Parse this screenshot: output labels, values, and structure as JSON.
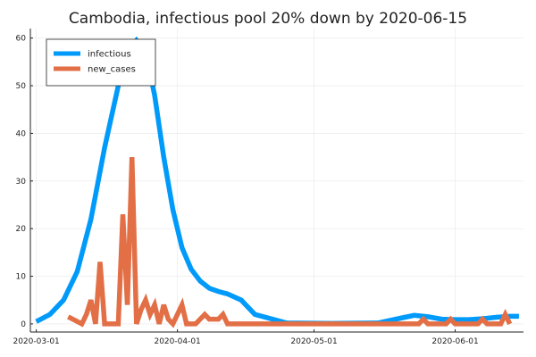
{
  "chart_data": {
    "type": "line",
    "title": "Cambodia, infectious pool 20% down by 2020-06-15",
    "xlabel": "",
    "ylabel": "",
    "x_start": "2020-03-01",
    "x_range": [
      "2020-03-01",
      "2020-06-15"
    ],
    "ylim": [
      0,
      62
    ],
    "grid": true,
    "legend_position": "top-left",
    "x_ticks": [
      {
        "date": "2020-03-01",
        "label": "2020-03-01"
      },
      {
        "date": "2020-04-01",
        "label": "2020-04-01"
      },
      {
        "date": "2020-05-01",
        "label": "2020-05-01"
      },
      {
        "date": "2020-06-01",
        "label": "2020-06-01"
      }
    ],
    "y_ticks": [
      0,
      10,
      20,
      30,
      40,
      50,
      60
    ],
    "series": [
      {
        "name": "infectious",
        "color": "#009AFA",
        "dates": [
          "2020-03-01",
          "2020-03-04",
          "2020-03-07",
          "2020-03-10",
          "2020-03-13",
          "2020-03-16",
          "2020-03-19",
          "2020-03-21",
          "2020-03-23",
          "2020-03-25",
          "2020-03-27",
          "2020-03-29",
          "2020-03-31",
          "2020-04-02",
          "2020-04-04",
          "2020-04-06",
          "2020-04-08",
          "2020-04-10",
          "2020-04-12",
          "2020-04-15",
          "2020-04-18",
          "2020-04-25",
          "2020-05-05",
          "2020-05-15",
          "2020-05-20",
          "2020-05-23",
          "2020-05-26",
          "2020-05-29",
          "2020-06-01",
          "2020-06-04",
          "2020-06-07",
          "2020-06-10",
          "2020-06-13",
          "2020-06-15"
        ],
        "values": [
          0.5,
          2,
          5,
          11,
          22,
          37,
          50,
          57,
          59.5,
          57,
          48,
          35,
          24,
          16,
          11.5,
          9,
          7.5,
          6.8,
          6.3,
          5,
          2,
          0.2,
          0.1,
          0.2,
          1.2,
          1.8,
          1.5,
          1.0,
          0.9,
          0.9,
          1.1,
          1.4,
          1.6,
          1.6
        ]
      },
      {
        "name": "new_cases",
        "color": "#E26F46",
        "dates": [
          "2020-03-08",
          "2020-03-11",
          "2020-03-12",
          "2020-03-13",
          "2020-03-14",
          "2020-03-15",
          "2020-03-16",
          "2020-03-17",
          "2020-03-18",
          "2020-03-19",
          "2020-03-20",
          "2020-03-21",
          "2020-03-22",
          "2020-03-23",
          "2020-03-24",
          "2020-03-25",
          "2020-03-26",
          "2020-03-27",
          "2020-03-28",
          "2020-03-29",
          "2020-03-30",
          "2020-03-31",
          "2020-04-01",
          "2020-04-02",
          "2020-04-03",
          "2020-04-04",
          "2020-04-05",
          "2020-04-06",
          "2020-04-07",
          "2020-04-08",
          "2020-04-09",
          "2020-04-10",
          "2020-04-11",
          "2020-04-12",
          "2020-04-13",
          "2020-04-14",
          "2020-04-15",
          "2020-04-16",
          "2020-04-17",
          "2020-04-20",
          "2020-04-25",
          "2020-05-01",
          "2020-05-05",
          "2020-05-10",
          "2020-05-15",
          "2020-05-20",
          "2020-05-21",
          "2020-05-22",
          "2020-05-23",
          "2020-05-24",
          "2020-05-25",
          "2020-05-26",
          "2020-05-27",
          "2020-05-28",
          "2020-05-29",
          "2020-05-30",
          "2020-05-31",
          "2020-06-01",
          "2020-06-02",
          "2020-06-03",
          "2020-06-04",
          "2020-06-05",
          "2020-06-06",
          "2020-06-07",
          "2020-06-08",
          "2020-06-09",
          "2020-06-10",
          "2020-06-11",
          "2020-06-12",
          "2020-06-13"
        ],
        "values": [
          1.5,
          0,
          2,
          5,
          0,
          13,
          0,
          0,
          0,
          0,
          23,
          4,
          35,
          0,
          3,
          5,
          2,
          4,
          0,
          4,
          1,
          0,
          2,
          4,
          0,
          0,
          0,
          1,
          2,
          1,
          1,
          1,
          2,
          0,
          0,
          0,
          0,
          0,
          0,
          0,
          0,
          0,
          0,
          0,
          0,
          0,
          0,
          0,
          0,
          0,
          1,
          0,
          0,
          0,
          0,
          0,
          1,
          0,
          0,
          0,
          0,
          0,
          0,
          1,
          0,
          0,
          0,
          0,
          2,
          0
        ]
      }
    ]
  }
}
